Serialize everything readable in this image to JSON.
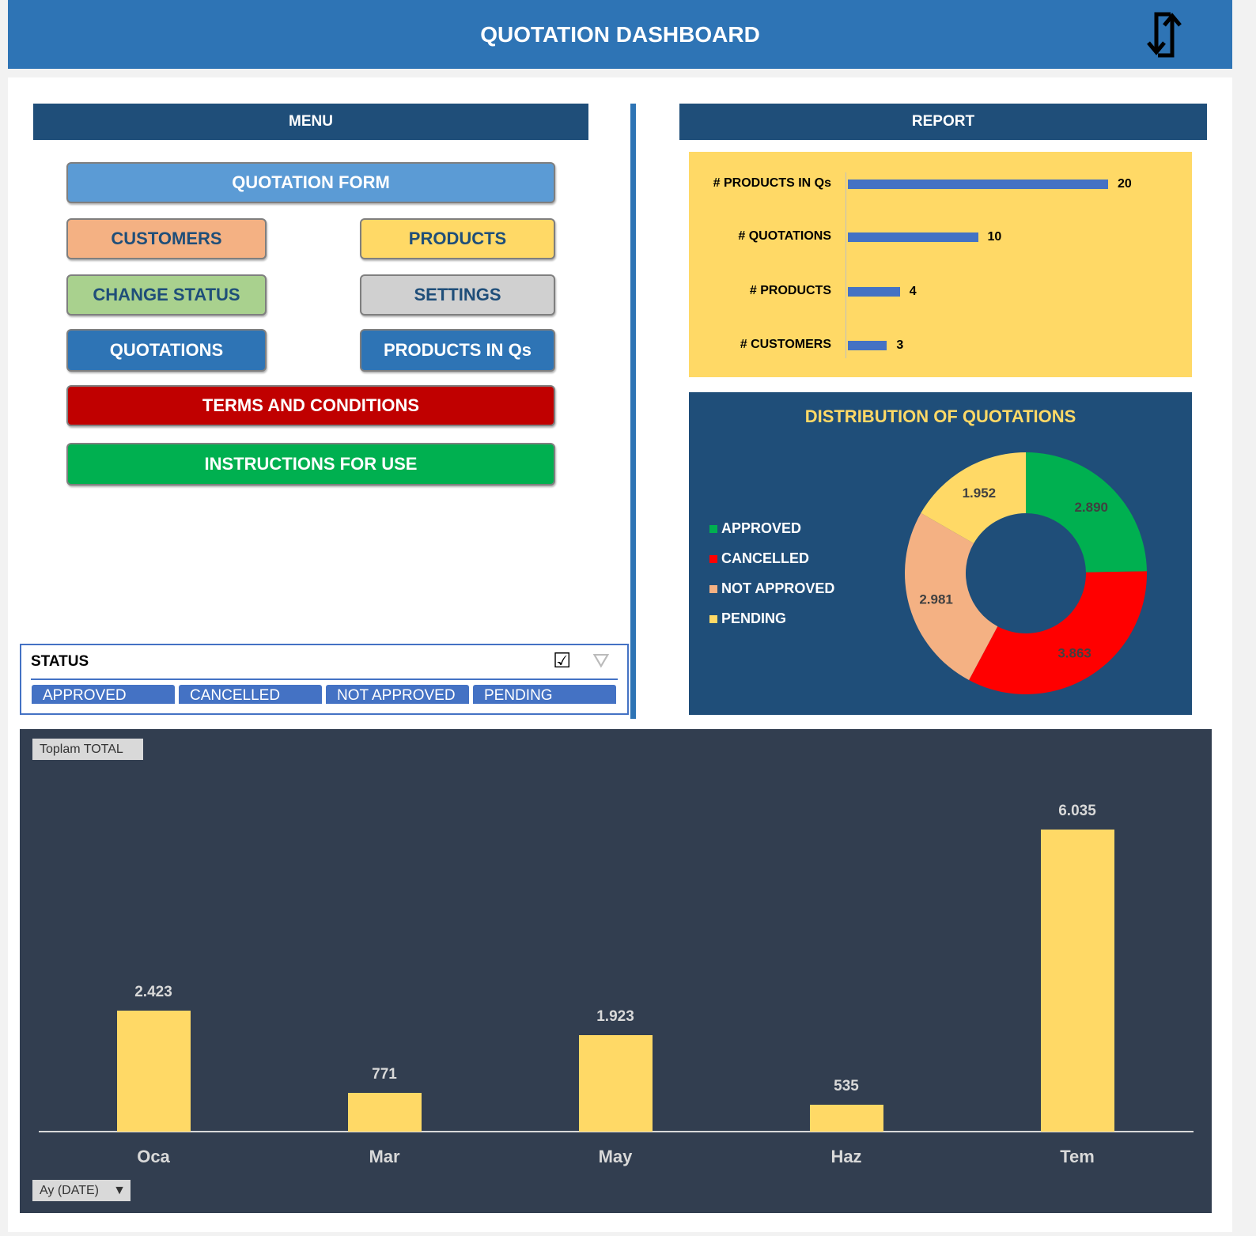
{
  "header": {
    "title": "QUOTATION DASHBOARD",
    "icon": "refresh-icon"
  },
  "menu": {
    "title": "MENU",
    "buttons": [
      {
        "label": "QUOTATION FORM",
        "bg": "#5b9bd5",
        "fg": "#ffffff"
      },
      {
        "label": "CUSTOMERS",
        "bg": "#f4b183",
        "fg": "#1f4e79"
      },
      {
        "label": "PRODUCTS",
        "bg": "#ffd966",
        "fg": "#1f4e79"
      },
      {
        "label": "CHANGE STATUS",
        "bg": "#a9d18e",
        "fg": "#1f4e79"
      },
      {
        "label": "SETTINGS",
        "bg": "#d0d0d0",
        "fg": "#1f4e79"
      },
      {
        "label": "QUOTATIONS",
        "bg": "#2e74b5",
        "fg": "#ffffff"
      },
      {
        "label": "PRODUCTS IN Qs",
        "bg": "#2e74b5",
        "fg": "#ffffff"
      },
      {
        "label": "TERMS AND CONDITIONS",
        "bg": "#c00000",
        "fg": "#ffffff"
      },
      {
        "label": "INSTRUCTIONS FOR USE",
        "bg": "#00b050",
        "fg": "#ffffff"
      }
    ]
  },
  "slicer": {
    "title": "STATUS",
    "items": [
      "APPROVED",
      "CANCELLED",
      "NOT APPROVED",
      "PENDING"
    ],
    "icons": [
      "multi-select-icon",
      "clear-filter-icon"
    ]
  },
  "report": {
    "title": "REPORT"
  },
  "chart_data": [
    {
      "type": "bar",
      "orientation": "horizontal",
      "categories": [
        "# PRODUCTS IN Qs",
        "# QUOTATIONS",
        "# PRODUCTS",
        "# CUSTOMERS"
      ],
      "values": [
        20,
        10,
        4,
        3
      ],
      "color": "#4472c4",
      "background": "#ffd966"
    },
    {
      "type": "pie",
      "subtype": "donut",
      "title": "DISTRIBUTION OF QUOTATIONS",
      "categories": [
        "APPROVED",
        "CANCELLED",
        "NOT APPROVED",
        "PENDING"
      ],
      "values": [
        2890,
        3863,
        2981,
        1952
      ],
      "labels": [
        "2.890",
        "3.863",
        "2.981",
        "1.952"
      ],
      "colors": [
        "#00b050",
        "#ff0000",
        "#f4b183",
        "#ffd966"
      ],
      "legend": "left"
    },
    {
      "type": "bar",
      "categories": [
        "Oca",
        "Mar",
        "May",
        "Haz",
        "Tem"
      ],
      "values": [
        2423,
        771,
        1923,
        535,
        6035
      ],
      "labels": [
        "2.423",
        "771",
        "1.923",
        "535",
        "6.035"
      ],
      "color": "#ffd966",
      "background": "#323e50",
      "field_button": "Toplam TOTAL",
      "axis_field": "Ay (DATE)"
    }
  ]
}
